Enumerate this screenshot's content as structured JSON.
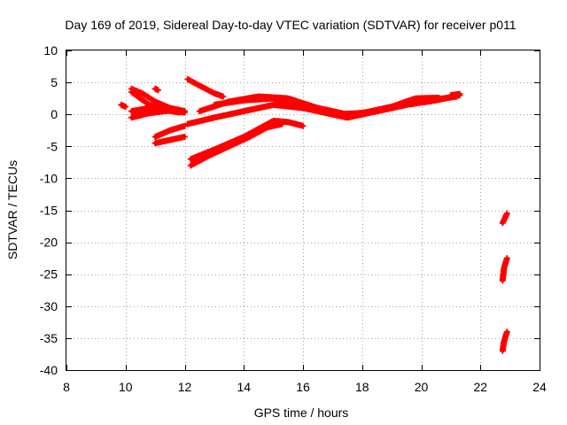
{
  "chart_data": {
    "type": "scatter",
    "title": "Day 169 of 2019, Sidereal Day-to-day VTEC variation (SDTVAR) for receiver p011",
    "xlabel": "GPS time / hours",
    "ylabel": "SDTVAR / TECUs",
    "xlim": [
      8,
      24
    ],
    "ylim": [
      -40,
      10
    ],
    "xticks": [
      "8",
      "10",
      "12",
      "14",
      "16",
      "18",
      "20",
      "22",
      "24"
    ],
    "yticks": [
      "10",
      "5",
      "0",
      "-5",
      "-10",
      "-15",
      "-20",
      "-25",
      "-30",
      "-35",
      "-40"
    ],
    "grid": true,
    "legend": "none",
    "marker": "plus",
    "color": "#ff0000",
    "tracks": [
      {
        "points": [
          [
            9.85,
            1.5
          ],
          [
            10.0,
            1.2
          ]
        ]
      },
      {
        "points": [
          [
            10.2,
            4.0
          ],
          [
            10.6,
            3.2
          ],
          [
            11.0,
            2.0
          ],
          [
            11.5,
            1.0
          ],
          [
            12.0,
            0.5
          ]
        ]
      },
      {
        "points": [
          [
            10.2,
            3.5
          ],
          [
            10.5,
            2.5
          ],
          [
            10.8,
            1.5
          ],
          [
            11.2,
            0.8
          ],
          [
            11.8,
            0.3
          ]
        ]
      },
      {
        "points": [
          [
            10.2,
            0.5
          ],
          [
            10.8,
            1.0
          ],
          [
            11.5,
            0.8
          ],
          [
            12.0,
            0.5
          ]
        ]
      },
      {
        "points": [
          [
            10.2,
            -0.5
          ],
          [
            10.8,
            0.2
          ],
          [
            11.5,
            0.6
          ],
          [
            12.0,
            0.3
          ]
        ]
      },
      {
        "points": [
          [
            11.0,
            4.0
          ],
          [
            11.1,
            3.8
          ]
        ]
      },
      {
        "points": [
          [
            12.1,
            5.5
          ],
          [
            12.5,
            4.5
          ],
          [
            13.0,
            3.3
          ],
          [
            13.3,
            2.8
          ]
        ]
      },
      {
        "points": [
          [
            11.0,
            -3.5
          ],
          [
            11.5,
            -2.5
          ],
          [
            12.0,
            -1.8
          ]
        ]
      },
      {
        "points": [
          [
            11.0,
            -4.5
          ],
          [
            11.5,
            -4.0
          ],
          [
            12.0,
            -3.5
          ]
        ]
      },
      {
        "points": [
          [
            12.1,
            -1.5
          ],
          [
            13.0,
            -0.5
          ],
          [
            14.0,
            0.5
          ],
          [
            15.0,
            1.5
          ],
          [
            16.0,
            1.0
          ],
          [
            17.0,
            0.0
          ],
          [
            17.5,
            -0.5
          ],
          [
            18.0,
            0.0
          ],
          [
            19.0,
            1.0
          ],
          [
            20.0,
            2.0
          ],
          [
            21.2,
            2.8
          ]
        ]
      },
      {
        "points": [
          [
            12.5,
            0.5
          ],
          [
            13.5,
            2.0
          ],
          [
            14.5,
            2.8
          ],
          [
            15.5,
            2.5
          ],
          [
            16.5,
            1.0
          ],
          [
            17.5,
            0.0
          ],
          [
            18.5,
            0.5
          ],
          [
            19.5,
            1.5
          ],
          [
            20.5,
            2.2
          ],
          [
            21.3,
            3.0
          ]
        ]
      },
      {
        "points": [
          [
            13.0,
            1.5
          ],
          [
            14.0,
            2.2
          ],
          [
            15.0,
            2.5
          ],
          [
            16.0,
            1.5
          ],
          [
            17.0,
            0.0
          ],
          [
            18.0,
            0.2
          ],
          [
            19.0,
            1.2
          ],
          [
            19.8,
            2.5
          ],
          [
            20.6,
            2.6
          ]
        ]
      },
      {
        "points": [
          [
            12.2,
            -7.0
          ],
          [
            13.0,
            -5.5
          ],
          [
            14.0,
            -3.5
          ],
          [
            15.0,
            -1.0
          ],
          [
            15.5,
            -1.2
          ],
          [
            16.0,
            -1.8
          ]
        ]
      },
      {
        "points": [
          [
            12.2,
            -8.0
          ],
          [
            12.8,
            -6.5
          ],
          [
            13.5,
            -5.0
          ],
          [
            14.2,
            -3.5
          ],
          [
            14.8,
            -2.0
          ],
          [
            15.3,
            -1.5
          ]
        ]
      },
      {
        "points": [
          [
            21.0,
            3.0
          ],
          [
            21.3,
            3.2
          ]
        ]
      },
      {
        "points": [
          [
            22.75,
            -17.0
          ],
          [
            22.9,
            -15.5
          ]
        ]
      },
      {
        "points": [
          [
            22.75,
            -26.0
          ],
          [
            22.8,
            -24.0
          ],
          [
            22.9,
            -22.5
          ]
        ]
      },
      {
        "points": [
          [
            22.75,
            -37.0
          ],
          [
            22.8,
            -35.5
          ],
          [
            22.9,
            -34.0
          ]
        ]
      }
    ]
  }
}
